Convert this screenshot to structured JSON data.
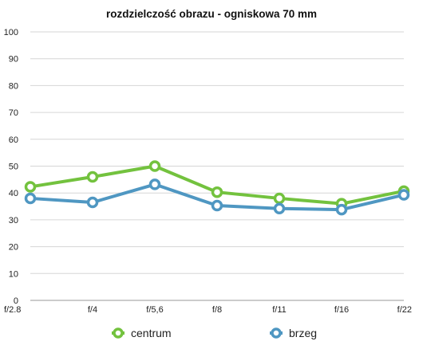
{
  "chart_data": {
    "type": "line",
    "title": "rozdzielczość obrazu - ogniskowa 70 mm",
    "categories": [
      "f/2.8",
      "f/4",
      "f/5,6",
      "f/8",
      "f/11",
      "f/16",
      "f/22"
    ],
    "ylim": [
      0,
      100
    ],
    "yticks": [
      0,
      10,
      20,
      30,
      40,
      50,
      60,
      70,
      80,
      90,
      100
    ],
    "grid": true,
    "legend": "bottom",
    "series": [
      {
        "name": "centrum",
        "color": "#73c23e",
        "values": [
          42.3,
          46,
          50,
          40.3,
          38,
          36,
          40.7
        ]
      },
      {
        "name": "brzeg",
        "color": "#4f97c2",
        "values": [
          38,
          36.5,
          43.2,
          35.3,
          34.2,
          33.8,
          39.3
        ]
      }
    ]
  }
}
